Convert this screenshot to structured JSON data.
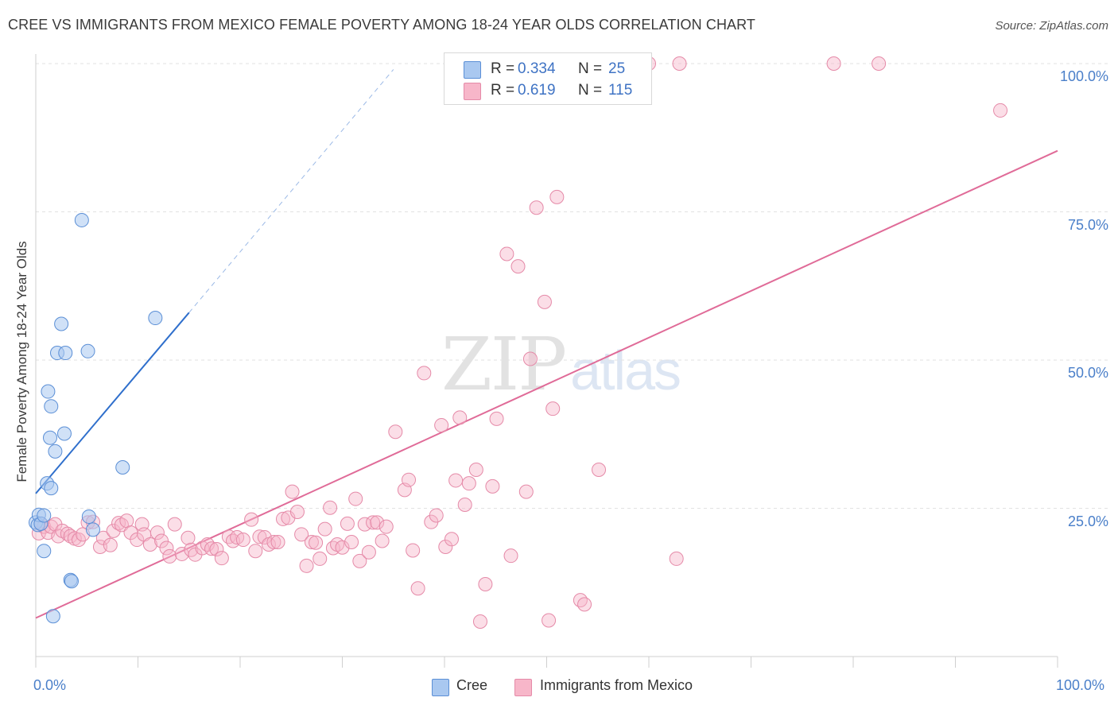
{
  "header": {
    "title": "CREE VS IMMIGRANTS FROM MEXICO FEMALE POVERTY AMONG 18-24 YEAR OLDS CORRELATION CHART",
    "source": "Source: ZipAtlas.com"
  },
  "watermark": {
    "zip": "ZIP",
    "atlas": "atlas"
  },
  "legend": {
    "rows": [
      {
        "r_label": "R =",
        "r_value": "0.334",
        "n_label": "N =",
        "n_value": "25",
        "color": "#a9c8f0"
      },
      {
        "r_label": "R =",
        "r_value": "0.619",
        "n_label": "N =",
        "n_value": "115",
        "color": "#f7b6c9"
      }
    ]
  },
  "bottom_legend": {
    "cree": "Cree",
    "mexico": "Immigrants from Mexico"
  },
  "colors": {
    "cree_fill": "#a9c8f0",
    "cree_stroke": "#5b8fd6",
    "cree_line": "#2f6fcc",
    "mexico_fill": "#f7b6c9",
    "mexico_stroke": "#e58aa8",
    "mexico_line": "#e06b98",
    "tick_text": "#4a7fc9",
    "grid": "#e2e2e2"
  },
  "chart_data": {
    "type": "scatter",
    "title": "CREE VS IMMIGRANTS FROM MEXICO FEMALE POVERTY AMONG 18-24 YEAR OLDS CORRELATION CHART",
    "xlabel": "",
    "ylabel": "Female Poverty Among 18-24 Year Olds",
    "xlim": [
      0,
      100
    ],
    "ylim": [
      0,
      100
    ],
    "x_tick_labels": [
      "0.0%",
      "100.0%"
    ],
    "y_tick_labels": [
      "25.0%",
      "50.0%",
      "75.0%",
      "100.0%"
    ],
    "y_ticks": [
      25,
      50,
      75,
      100
    ],
    "x_minor_ticks": [
      0,
      10,
      20,
      30,
      40,
      50,
      60,
      70,
      80,
      90,
      100
    ],
    "grid": true,
    "legend_position": "top-center",
    "series": [
      {
        "name": "Cree",
        "R": 0.334,
        "N": 25,
        "points": [
          [
            0.0,
            22.6
          ],
          [
            0.2,
            22.2
          ],
          [
            0.3,
            23.9
          ],
          [
            0.5,
            22.4
          ],
          [
            0.8,
            23.8
          ],
          [
            0.8,
            17.8
          ],
          [
            1.1,
            29.2
          ],
          [
            1.2,
            44.7
          ],
          [
            1.4,
            36.9
          ],
          [
            1.5,
            28.4
          ],
          [
            1.5,
            42.2
          ],
          [
            1.7,
            6.8
          ],
          [
            1.9,
            34.6
          ],
          [
            2.1,
            51.2
          ],
          [
            2.5,
            56.1
          ],
          [
            2.8,
            37.6
          ],
          [
            2.9,
            51.2
          ],
          [
            3.4,
            12.9
          ],
          [
            3.5,
            12.7
          ],
          [
            5.1,
            51.5
          ],
          [
            5.2,
            23.6
          ],
          [
            5.6,
            21.4
          ],
          [
            4.5,
            73.6
          ],
          [
            8.5,
            31.9
          ],
          [
            11.7,
            57.1
          ]
        ],
        "trend": {
          "x": [
            0,
            15
          ],
          "y": [
            27.5,
            58.0
          ],
          "dashed_extension": {
            "x": [
              15,
              35
            ],
            "y": [
              58.0,
              99.0
            ]
          }
        }
      },
      {
        "name": "Immigrants from Mexico",
        "R": 0.619,
        "N": 115,
        "points": [
          [
            0.3,
            20.8
          ],
          [
            0.5,
            22.4
          ],
          [
            0.8,
            21.9
          ],
          [
            1.2,
            20.9
          ],
          [
            1.5,
            21.9
          ],
          [
            1.9,
            22.3
          ],
          [
            2.2,
            20.3
          ],
          [
            2.6,
            21.2
          ],
          [
            3.1,
            20.7
          ],
          [
            3.4,
            20.3
          ],
          [
            3.8,
            19.9
          ],
          [
            4.2,
            19.7
          ],
          [
            4.6,
            20.6
          ],
          [
            5.1,
            22.6
          ],
          [
            5.6,
            22.7
          ],
          [
            6.3,
            18.5
          ],
          [
            6.6,
            20.0
          ],
          [
            7.3,
            18.8
          ],
          [
            7.6,
            21.2
          ],
          [
            8.1,
            22.5
          ],
          [
            8.4,
            22.2
          ],
          [
            8.9,
            22.9
          ],
          [
            9.3,
            20.9
          ],
          [
            9.9,
            19.7
          ],
          [
            10.4,
            22.3
          ],
          [
            10.6,
            20.6
          ],
          [
            11.2,
            18.9
          ],
          [
            11.9,
            20.9
          ],
          [
            12.3,
            19.5
          ],
          [
            12.8,
            18.3
          ],
          [
            13.1,
            16.9
          ],
          [
            13.6,
            22.3
          ],
          [
            14.3,
            17.3
          ],
          [
            14.9,
            20.0
          ],
          [
            15.2,
            18.0
          ],
          [
            15.6,
            17.2
          ],
          [
            16.3,
            18.3
          ],
          [
            16.8,
            18.9
          ],
          [
            17.2,
            18.2
          ],
          [
            17.7,
            18.1
          ],
          [
            18.2,
            16.6
          ],
          [
            18.9,
            20.2
          ],
          [
            19.3,
            19.5
          ],
          [
            19.7,
            20.1
          ],
          [
            20.3,
            19.7
          ],
          [
            21.1,
            23.1
          ],
          [
            21.5,
            17.8
          ],
          [
            21.9,
            20.2
          ],
          [
            22.4,
            20.1
          ],
          [
            22.8,
            18.9
          ],
          [
            23.3,
            19.3
          ],
          [
            23.7,
            19.3
          ],
          [
            24.2,
            23.2
          ],
          [
            24.7,
            23.4
          ],
          [
            25.1,
            27.8
          ],
          [
            25.6,
            24.4
          ],
          [
            26.0,
            20.6
          ],
          [
            26.5,
            15.3
          ],
          [
            27.0,
            19.3
          ],
          [
            27.4,
            19.2
          ],
          [
            27.8,
            16.5
          ],
          [
            28.3,
            21.5
          ],
          [
            28.8,
            25.1
          ],
          [
            29.1,
            18.3
          ],
          [
            29.5,
            18.9
          ],
          [
            30.0,
            18.4
          ],
          [
            30.5,
            22.4
          ],
          [
            30.9,
            19.3
          ],
          [
            31.3,
            26.6
          ],
          [
            31.7,
            16.1
          ],
          [
            32.2,
            22.3
          ],
          [
            32.6,
            17.6
          ],
          [
            33.0,
            22.6
          ],
          [
            33.4,
            22.6
          ],
          [
            33.9,
            19.5
          ],
          [
            34.3,
            21.9
          ],
          [
            35.2,
            37.9
          ],
          [
            36.1,
            28.1
          ],
          [
            36.5,
            29.8
          ],
          [
            36.9,
            17.9
          ],
          [
            37.4,
            11.5
          ],
          [
            38.0,
            47.8
          ],
          [
            38.7,
            22.7
          ],
          [
            39.2,
            23.8
          ],
          [
            39.7,
            39.0
          ],
          [
            40.1,
            18.5
          ],
          [
            40.7,
            19.8
          ],
          [
            41.1,
            29.7
          ],
          [
            41.5,
            40.3
          ],
          [
            42.0,
            25.6
          ],
          [
            42.4,
            29.2
          ],
          [
            43.1,
            31.5
          ],
          [
            43.5,
            5.9
          ],
          [
            44.0,
            12.2
          ],
          [
            44.7,
            28.7
          ],
          [
            45.1,
            40.1
          ],
          [
            46.1,
            67.9
          ],
          [
            46.5,
            17.0
          ],
          [
            47.2,
            65.8
          ],
          [
            48.0,
            27.8
          ],
          [
            48.4,
            50.2
          ],
          [
            49.0,
            75.7
          ],
          [
            49.8,
            59.8
          ],
          [
            50.2,
            6.1
          ],
          [
            50.6,
            41.8
          ],
          [
            51.0,
            77.5
          ],
          [
            53.3,
            9.5
          ],
          [
            53.7,
            8.8
          ],
          [
            55.1,
            31.5
          ],
          [
            60.0,
            100.0
          ],
          [
            63.0,
            100.0
          ],
          [
            78.1,
            100.0
          ],
          [
            82.5,
            100.0
          ],
          [
            94.4,
            92.1
          ],
          [
            62.7,
            16.5
          ]
        ],
        "trend": {
          "x": [
            0,
            100
          ],
          "y": [
            6.5,
            85.3
          ]
        }
      }
    ]
  }
}
